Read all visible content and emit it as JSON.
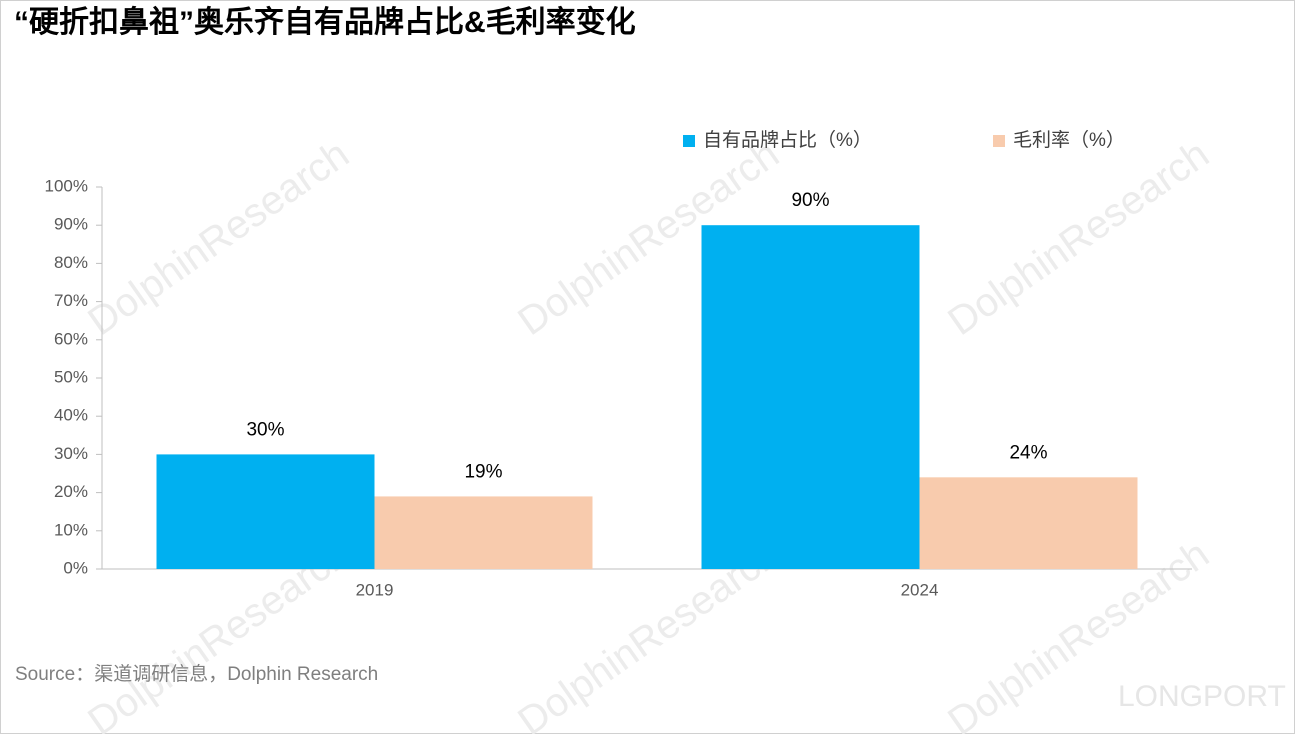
{
  "chart_data": {
    "type": "bar",
    "title": "“硬折扣鼻祖”奥乐齐自有品牌占比&毛利率变化",
    "categories": [
      "2019",
      "2024"
    ],
    "series": [
      {
        "name": "自有品牌占比（%）",
        "color": "#00b0f0",
        "values": [
          30,
          90
        ],
        "value_labels": [
          "30%",
          "90%"
        ]
      },
      {
        "name": "毛利率（%）",
        "color": "#f8cbad",
        "values": [
          19,
          24
        ],
        "value_labels": [
          "19%",
          "24%"
        ]
      }
    ],
    "ylim": [
      0,
      100
    ],
    "yticks": [
      {
        "value": 0,
        "label": "0%"
      },
      {
        "value": 10,
        "label": "10%"
      },
      {
        "value": 20,
        "label": "20%"
      },
      {
        "value": 30,
        "label": "30%"
      },
      {
        "value": 40,
        "label": "40%"
      },
      {
        "value": 50,
        "label": "50%"
      },
      {
        "value": 60,
        "label": "60%"
      },
      {
        "value": 70,
        "label": "70%"
      },
      {
        "value": 80,
        "label": "80%"
      },
      {
        "value": 90,
        "label": "90%"
      },
      {
        "value": 100,
        "label": "100%"
      }
    ],
    "legend": "top-right",
    "source": "Source：渠道调研信息，Dolphin Research",
    "watermark": "DolphinResearch",
    "logo": "LONGPORT"
  }
}
